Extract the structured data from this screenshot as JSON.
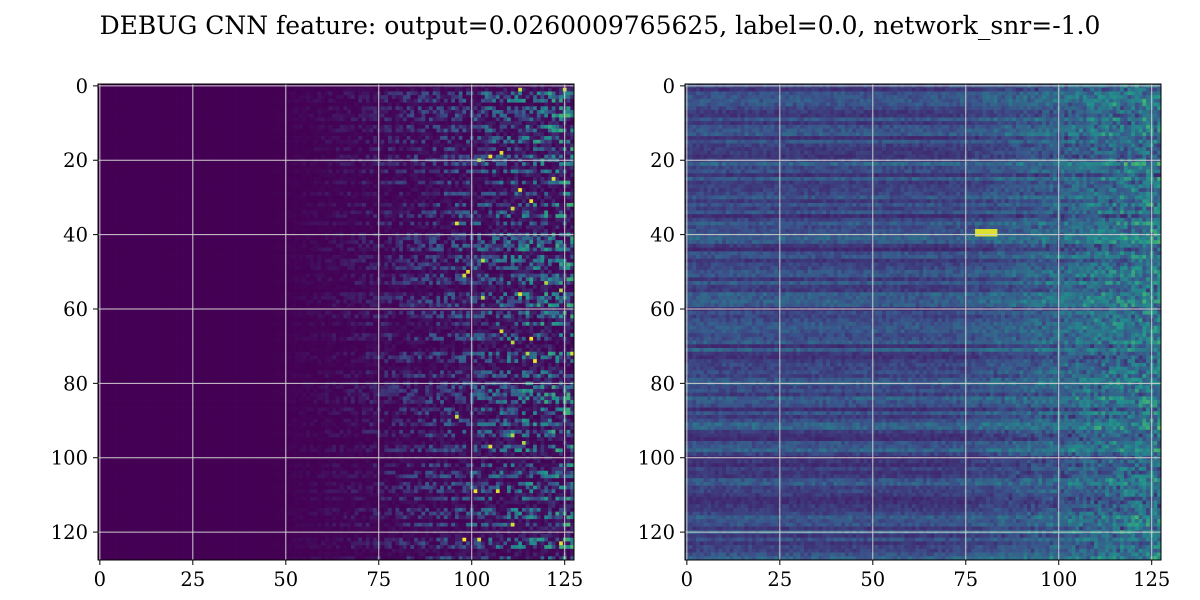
{
  "figure": {
    "title": "DEBUG CNN feature: output=0.0260009765625, label=0.0, network_snr=-1.0"
  },
  "chart_data": [
    {
      "type": "heatmap",
      "title": "",
      "xlabel": "",
      "ylabel": "",
      "rows": 128,
      "cols": 128,
      "xlim": [
        -0.5,
        127.5
      ],
      "ylim": [
        127.5,
        -0.5
      ],
      "y_inverted": true,
      "xticks": [
        0,
        25,
        50,
        75,
        100,
        125
      ],
      "yticks": [
        0,
        20,
        40,
        60,
        80,
        100,
        120
      ],
      "grid": true,
      "colormap": "viridis",
      "colormap_stops": [
        "#440154",
        "#3b528b",
        "#21918c",
        "#5ec962",
        "#fde725"
      ],
      "description_of_values": "column 0 to ~45 near zero (dark purple); sparse bright horizontal streaks increasing in density and intensity toward columns 75-127"
    },
    {
      "type": "heatmap",
      "title": "",
      "xlabel": "",
      "ylabel": "",
      "rows": 128,
      "cols": 128,
      "xlim": [
        -0.5,
        127.5
      ],
      "ylim": [
        127.5,
        -0.5
      ],
      "y_inverted": true,
      "xticks": [
        0,
        25,
        50,
        75,
        100,
        125
      ],
      "yticks": [
        0,
        20,
        40,
        60,
        80,
        100,
        120
      ],
      "grid": true,
      "colormap": "viridis",
      "colormap_stops": [
        "#440154",
        "#3b528b",
        "#21918c",
        "#5ec962",
        "#fde725"
      ],
      "description_of_values": "horizontal banded texture across all columns at low-mid level; higher noisy values from column ~75 onward; brightest point near row 40, column 80"
    }
  ]
}
